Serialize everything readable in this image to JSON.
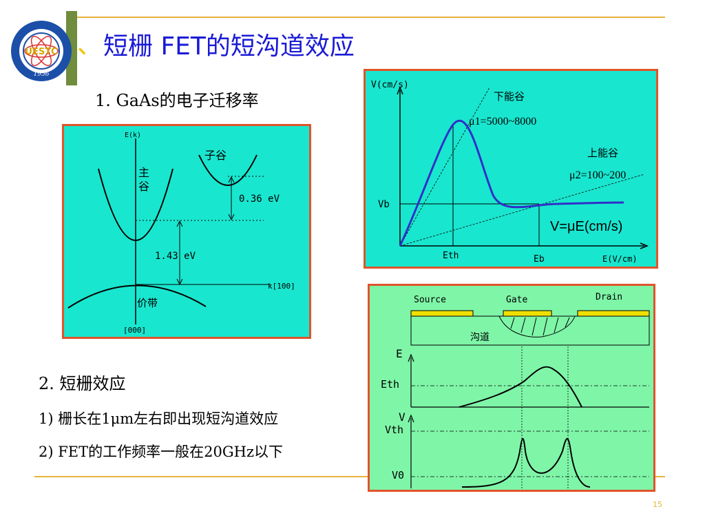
{
  "slide": {
    "title": "短栅 FET的短沟道效应",
    "title_bullet": "、",
    "item1": "1. GaAs的电子迁移率",
    "item2": "2.  短栅效应",
    "item2_1": "1) 栅长在1μm左右即出现短沟道效应",
    "item2_2": "2) FET的工作频率一般在20GHz以下",
    "page_number": "15"
  },
  "logo": {
    "text": "UESTC",
    "year": "1956"
  },
  "band_diagram": {
    "y_axis_label": "E(k)",
    "main_valley": "主谷",
    "sub_valley": "子谷",
    "gap_small": "0.36 eV",
    "gap_large": "1.43 eV",
    "k_label": "k[100]",
    "valence_band": "价带",
    "origin_label": "[000]",
    "background": "#19e6cf"
  },
  "velocity_field": {
    "y_axis_label": "V(cm/s)",
    "lower_valley": "下能谷",
    "mu1": "μ1=5000~8000",
    "upper_valley": "上能谷",
    "mu2": "μ2=100~200",
    "vb_label": "Vb",
    "equation": "V=μE(cm/s)",
    "eth_label": "Eth",
    "eb_label": "Eb",
    "x_axis_label": "E(V/cm)",
    "background": "#19e6cf"
  },
  "device_diagram": {
    "source": "Source",
    "gate": "Gate",
    "drain": "Drain",
    "channel": "沟道",
    "e_label": "E",
    "eth_label": "Eth",
    "v_label": "V",
    "vth_label": "Vth",
    "v0_label": "V0",
    "background": "#7ff5a8"
  }
}
